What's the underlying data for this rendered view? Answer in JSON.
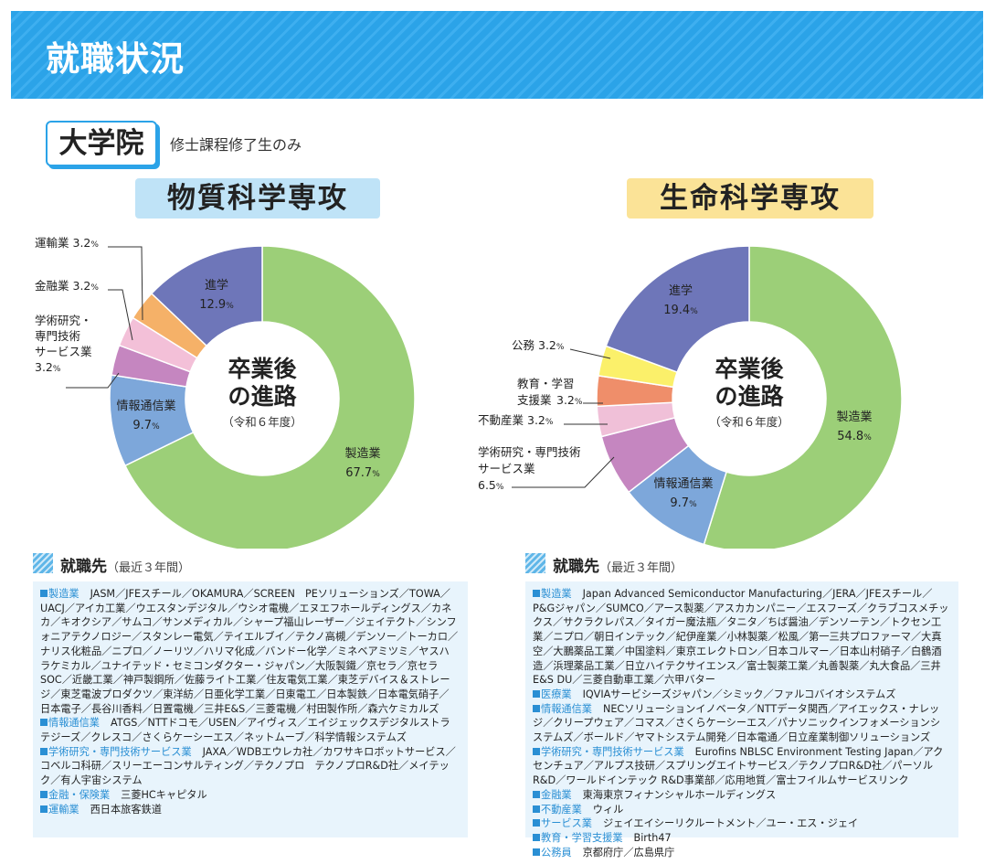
{
  "header": {
    "title": "就職状況"
  },
  "graduate": {
    "label": "大学院",
    "note": "修士課程修了生のみ"
  },
  "center_label": {
    "line1": "卒業後",
    "line2": "の進路",
    "line3": "（令和６年度）"
  },
  "colors": {
    "header": "#2ba3e8",
    "manufacturing": "#9ccf78",
    "it": "#7da7da",
    "research": "#c586c0",
    "realestate": "#f0c0d8",
    "education": "#ef8e6a",
    "public": "#fbf06a",
    "finance": "#f5b168",
    "transport": "#f3c0d8",
    "advance": "#6e76b9"
  },
  "chart_data": [
    {
      "type": "pie",
      "title": "物質科学専攻",
      "slices": [
        {
          "label": "製造業",
          "value": 67.7,
          "value_text": "67.7",
          "color": "#9ccf78"
        },
        {
          "label": "情報通信業",
          "value": 9.7,
          "value_text": "9.7",
          "color": "#7da7da"
        },
        {
          "label": "学術研究・専門技術サービス業",
          "label_lines": [
            "学術研究・",
            "専門技術",
            "サービス業"
          ],
          "value": 3.2,
          "value_text": "3.2",
          "color": "#c586c0"
        },
        {
          "label": "金融業",
          "value": 3.2,
          "value_text": "3.2",
          "color": "#f3c0d8"
        },
        {
          "label": "運輸業",
          "value": 3.2,
          "value_text": "3.2",
          "color": "#f5b168"
        },
        {
          "label": "進学",
          "value": 12.9,
          "value_text": "12.9",
          "color": "#6e76b9"
        }
      ]
    },
    {
      "type": "pie",
      "title": "生命科学専攻",
      "slices": [
        {
          "label": "製造業",
          "value": 54.8,
          "value_text": "54.8",
          "color": "#9ccf78"
        },
        {
          "label": "情報通信業",
          "value": 9.7,
          "value_text": "9.7",
          "color": "#7da7da"
        },
        {
          "label": "学術研究・専門技術サービス業",
          "label_lines": [
            "学術研究・専門技術",
            "サービス業"
          ],
          "value": 6.5,
          "value_text": "6.5",
          "color": "#c586c0"
        },
        {
          "label": "不動産業",
          "value": 3.2,
          "value_text": "3.2",
          "color": "#f0c0d8"
        },
        {
          "label": "教育・学習支援業",
          "label_lines": [
            "教育・学習",
            "支援業"
          ],
          "value": 3.2,
          "value_text": "3.2",
          "color": "#ef8e6a"
        },
        {
          "label": "公務",
          "value": 3.2,
          "value_text": "3.2",
          "color": "#fbf06a"
        },
        {
          "label": "進学",
          "value": 19.4,
          "value_text": "19.4",
          "color": "#6e76b9"
        }
      ]
    }
  ],
  "employment": {
    "title": "就職先",
    "subtitle": "（最近３年間）",
    "left": [
      {
        "cat": "製造業",
        "text": "JASM／JFEスチール／OKAMURA／SCREEN　PEソリューションズ／TOWA／UACJ／アイカ工業／ウエスタンデジタル／ウシオ電機／エヌエフホールディングス／カネカ／キオクシア／サムコ／サンメディカル／シャープ福山レーザー／ジェイテクト／シンフォニアテクノロジー／スタンレー電気／テイエルブイ／テクノ高槻／デンソー／トーカロ／ナリス化粧品／ニプロ／ノーリツ／ハリマ化成／バンドー化学／ミネベアミツミ／ヤスハラケミカル／ユナイテッド・セミコンダクター・ジャパン／大阪製鐵／京セラ／京セラSOC／近畿工業／神戸製鋼所／佐藤ライト工業／住友電気工業／東芝デバイス＆ストレージ／東芝電波プロダクツ／東洋紡／日亜化学工業／日東電工／日本製鉄／日本電気硝子／日本電子／長谷川香料／日置電機／三井E&S／三菱電機／村田製作所／森六ケミカルズ"
      },
      {
        "cat": "情報通信業",
        "text": "ATGS／NTTドコモ／USEN／アイヴィス／エイジェックスデジタルストラテジーズ／クレスコ／さくらケーシーエス／ネットムーブ／科学情報システムズ"
      },
      {
        "cat": "学術研究・専門技術サービス業",
        "text": "JAXA／WDBエウレカ社／カワサキロボットサービス／コベルコ科研／スリーエーコンサルティング／テクノプロ　テクノプロR&D社／メイテック／有人宇宙システム"
      },
      {
        "cat": "金融・保険業",
        "text": "三菱HCキャピタル"
      },
      {
        "cat": "運輸業",
        "text": "西日本旅客鉄道"
      }
    ],
    "right": [
      {
        "cat": "製造業",
        "text": "Japan Advanced Semiconductor Manufacturing／JERA／JFEスチール／P&Gジャパン／SUMCO／アース製薬／アスカカンパニー／エスフーズ／クラブコスメチックス／サクラクレパス／タイガー魔法瓶／タニタ／ちば醤油／デンソーテン／トクセン工業／ニプロ／朝日インテック／紀伊産業／小林製薬／松風／第一三共プロファーマ／大真空／大鵬薬品工業／中国塗料／東京エレクトロン／日本コルマー／日本山村硝子／白鶴酒造／浜理薬品工業／日立ハイテクサイエンス／富士製薬工業／丸善製薬／丸大食品／三井E&S DU／三菱自動車工業／六甲バター"
      },
      {
        "cat": "医療業",
        "text": "IQVIAサービシーズジャパン／シミック／ファルコバイオシステムズ"
      },
      {
        "cat": "情報通信業",
        "text": "NECソリューションイノベータ／NTTデータ関西／アイエックス・ナレッジ／クリープウェア／コマス／さくらケーシーエス／パナソニックインフォメーションシステムズ／ボールド／ヤマトシステム開発／日本電通／日立産業制御ソリューションズ"
      },
      {
        "cat": "学術研究・専門技術サービス業",
        "text": "Eurofins NBLSC Environment Testing Japan／アクセンチュア／アルプス技研／スプリングエイトサービス／テクノプロR&D社／パーソルR&D／ワールドインテック R&D事業部／応用地質／富士フイルムサービスリンク"
      },
      {
        "cat": "金融業",
        "text": "東海東京フィナンシャルホールディングス"
      },
      {
        "cat": "不動産業",
        "text": "ウィル"
      },
      {
        "cat": "サービス業",
        "text": "ジェイエイシーリクルートメント／ユー・エス・ジェイ"
      },
      {
        "cat": "教育・学習支援業",
        "text": "Birth47"
      },
      {
        "cat": "公務員",
        "text": "京都府庁／広島県庁"
      }
    ]
  }
}
